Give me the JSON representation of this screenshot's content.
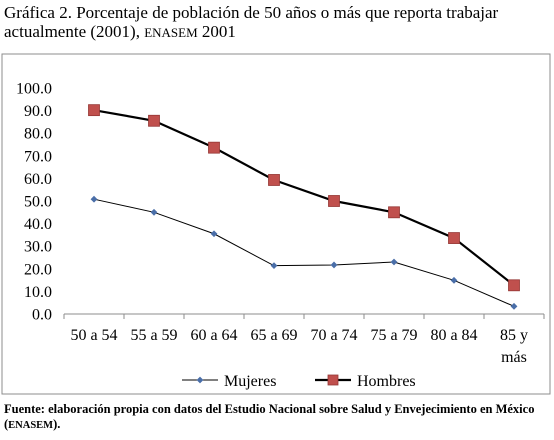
{
  "title": {
    "main": "Gráfica 2. Porcentaje de población de 50 años o más que reporta trabajar actualmente (2001), ",
    "sc": "ENASEM",
    "year": " 2001"
  },
  "source": {
    "prefix": "Fuente: elaboración propia con datos del Estudio Nacional sobre Salud y Envejecimiento en México (",
    "sc": "ENASEM",
    "suffix": ")."
  },
  "chart_data": {
    "type": "line",
    "categories": [
      "50 a 54",
      "55 a 59",
      "60 a 64",
      "65 a 69",
      "70 a 74",
      "75 a 79",
      "80 a 84",
      "85 y más"
    ],
    "series": [
      {
        "name": "Mujeres",
        "values": [
          50.8,
          45.0,
          35.5,
          21.4,
          21.7,
          23.0,
          14.9,
          3.4
        ],
        "color": "#4a6ea8",
        "marker": "diamond"
      },
      {
        "name": "Hombres",
        "values": [
          90.2,
          85.5,
          73.6,
          59.3,
          50.0,
          45.0,
          33.6,
          12.7
        ],
        "color": "#c0504d",
        "marker": "square"
      }
    ],
    "ylim": [
      0,
      100
    ],
    "yticks": [
      "0.0",
      "10.0",
      "20.0",
      "30.0",
      "40.0",
      "50.0",
      "60.0",
      "70.0",
      "80.0",
      "90.0",
      "100.0"
    ],
    "grid": false,
    "legend": "bottom"
  }
}
